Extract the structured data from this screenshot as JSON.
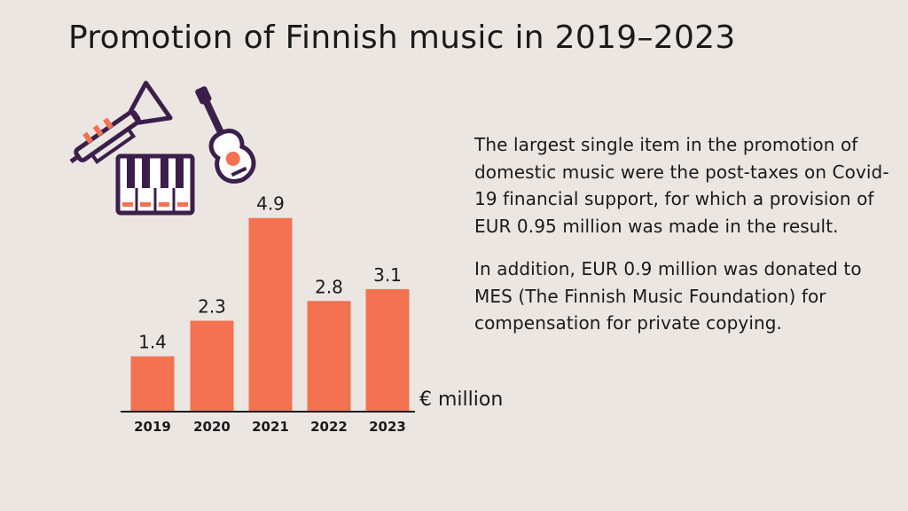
{
  "title": "Promotion of Finnish music in 2019–2023",
  "paragraphs": [
    "The largest single item in the promotion of domestic music were the post-taxes on Covid-19 financial support, for which a provision of EUR 0.95 million was made in the result.",
    "In addition, EUR 0.9 million was donated to MES (The Finnish Music Foundation) for compensation for private copying."
  ],
  "icons": [
    "trumpet-icon",
    "piano-keyboard-icon",
    "guitar-icon"
  ],
  "colors": {
    "background": "#ebe6e2",
    "bar": "#f27252",
    "icon_dark": "#3b1f4a",
    "icon_accent": "#f27252"
  },
  "chart_data": {
    "type": "bar",
    "categories": [
      "2019",
      "2020",
      "2021",
      "2022",
      "2023"
    ],
    "values": [
      1.4,
      2.3,
      4.9,
      2.8,
      3.1
    ],
    "value_labels": [
      "1.4",
      "2.3",
      "4.9",
      "2.8",
      "3.1"
    ],
    "unit_label": "€ million",
    "ylim": [
      0,
      5.5
    ],
    "grid": false
  }
}
